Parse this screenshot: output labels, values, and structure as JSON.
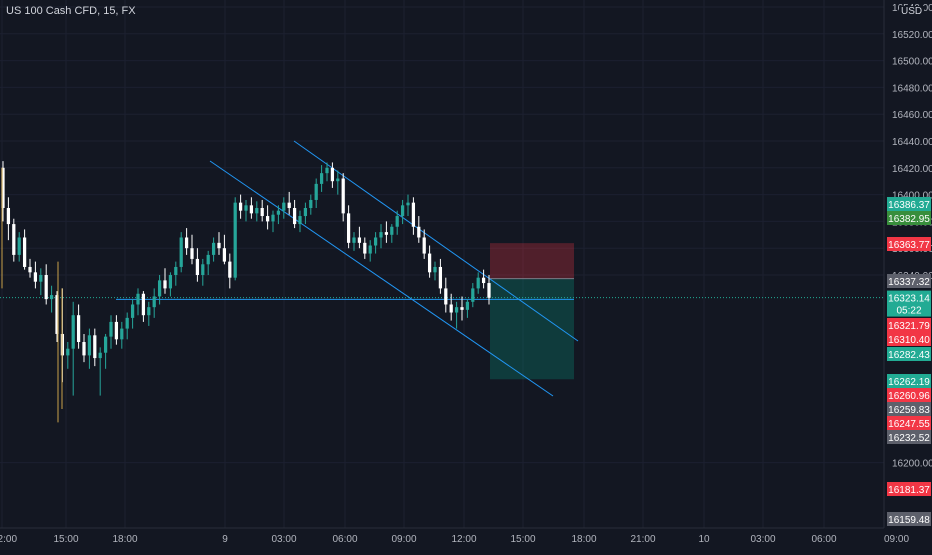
{
  "legend": {
    "title": "US 100 Cash CFD, 15, FX"
  },
  "axis": {
    "currency": "USD"
  },
  "chart_data": {
    "type": "candlestick",
    "symbol": "US 100 Cash CFD",
    "interval": "15",
    "exchange": "FX",
    "y_ticks": [
      16540,
      16520,
      16500,
      16480,
      16460,
      16440,
      16420,
      16400,
      16380,
      16360,
      16340,
      16200
    ],
    "ylim": [
      16155,
      16560
    ],
    "x_labels": [
      "12:00",
      "15:00",
      "18:00",
      "9",
      "03:00",
      "06:00",
      "09:00",
      "12:00",
      "15:00",
      "18:00",
      "21:00",
      "10",
      "03:00",
      "06:00",
      "09:00"
    ],
    "grid": true,
    "last_price": 16323.14,
    "countdown": "05:22",
    "price_labels": [
      {
        "value": "16386.37",
        "color": "#22ab94"
      },
      {
        "value": "16382.95",
        "color": "#388e3c"
      },
      {
        "value": "16363.77",
        "color": "#f23645"
      },
      {
        "value": "16337.32",
        "color": "#5d606b"
      },
      {
        "value": "16321.79",
        "color": "#f23645"
      },
      {
        "value": "16310.40",
        "color": "#f23645"
      },
      {
        "value": "16282.43",
        "color": "#22ab94"
      },
      {
        "value": "16262.19",
        "color": "#22ab94"
      },
      {
        "value": "16260.96",
        "color": "#f23645"
      },
      {
        "value": "16259.83",
        "color": "#5d606b"
      },
      {
        "value": "16247.55",
        "color": "#f23645"
      },
      {
        "value": "16232.52",
        "color": "#5d606b"
      },
      {
        "value": "16181.37",
        "color": "#f23645"
      },
      {
        "value": "16159.48",
        "color": "#5d606b"
      }
    ],
    "horizontal_line": 16321.79,
    "channel_lines": [
      {
        "name": "channel-upper",
        "from": [
          "08 03:00",
          16441
        ],
        "to": [
          "08 15:00",
          16312
        ]
      },
      {
        "name": "channel-lower",
        "from": [
          "08 21:00",
          16420
        ],
        "to": [
          "08 15:00",
          16253
        ]
      }
    ],
    "position": {
      "type": "short",
      "entry": 16337.32,
      "stop": 16363.77,
      "target": 16262.19
    },
    "candles_ohlc": [
      [
        16420,
        16425,
        16380,
        16390
      ],
      [
        16390,
        16398,
        16366,
        16378
      ],
      [
        16378,
        16382,
        16350,
        16355
      ],
      [
        16355,
        16372,
        16350,
        16368
      ],
      [
        16368,
        16374,
        16344,
        16346
      ],
      [
        16346,
        16352,
        16338,
        16342
      ],
      [
        16342,
        16350,
        16330,
        16335
      ],
      [
        16335,
        16345,
        16325,
        16340
      ],
      [
        16340,
        16348,
        16318,
        16322
      ],
      [
        16322,
        16332,
        16312,
        16325
      ],
      [
        16325,
        16328,
        16290,
        16296
      ],
      [
        16296,
        16330,
        16260,
        16280
      ],
      [
        16280,
        16290,
        16270,
        16285
      ],
      [
        16285,
        16320,
        16250,
        16310
      ],
      [
        16310,
        16318,
        16285,
        16290
      ],
      [
        16290,
        16296,
        16275,
        16280
      ],
      [
        16280,
        16300,
        16270,
        16295
      ],
      [
        16295,
        16300,
        16272,
        16278
      ],
      [
        16278,
        16286,
        16250,
        16282
      ],
      [
        16282,
        16296,
        16270,
        16294
      ],
      [
        16294,
        16310,
        16285,
        16305
      ],
      [
        16305,
        16310,
        16288,
        16292
      ],
      [
        16292,
        16305,
        16285,
        16300
      ],
      [
        16300,
        16312,
        16292,
        16308
      ],
      [
        16308,
        16322,
        16300,
        16318
      ],
      [
        16318,
        16330,
        16310,
        16326
      ],
      [
        16326,
        16328,
        16305,
        16310
      ],
      [
        16310,
        16320,
        16302,
        16316
      ],
      [
        16316,
        16330,
        16308,
        16324
      ],
      [
        16324,
        16340,
        16318,
        16336
      ],
      [
        16336,
        16345,
        16326,
        16330
      ],
      [
        16330,
        16342,
        16324,
        16340
      ],
      [
        16340,
        16350,
        16332,
        16346
      ],
      [
        16346,
        16372,
        16342,
        16368
      ],
      [
        16368,
        16375,
        16355,
        16360
      ],
      [
        16360,
        16370,
        16348,
        16352
      ],
      [
        16352,
        16360,
        16335,
        16340
      ],
      [
        16340,
        16352,
        16332,
        16348
      ],
      [
        16348,
        16358,
        16340,
        16355
      ],
      [
        16355,
        16368,
        16350,
        16364
      ],
      [
        16364,
        16372,
        16355,
        16360
      ],
      [
        16360,
        16370,
        16348,
        16350
      ],
      [
        16350,
        16356,
        16330,
        16338
      ],
      [
        16338,
        16398,
        16336,
        16394
      ],
      [
        16394,
        16400,
        16382,
        16388
      ],
      [
        16388,
        16396,
        16380,
        16392
      ],
      [
        16392,
        16398,
        16382,
        16386
      ],
      [
        16386,
        16395,
        16380,
        16390
      ],
      [
        16390,
        16396,
        16380,
        16384
      ],
      [
        16384,
        16392,
        16374,
        16380
      ],
      [
        16380,
        16388,
        16372,
        16385
      ],
      [
        16385,
        16392,
        16378,
        16388
      ],
      [
        16388,
        16398,
        16382,
        16394
      ],
      [
        16394,
        16402,
        16385,
        16390
      ],
      [
        16390,
        16396,
        16375,
        16378
      ],
      [
        16378,
        16388,
        16372,
        16384
      ],
      [
        16384,
        16394,
        16378,
        16390
      ],
      [
        16390,
        16400,
        16385,
        16396
      ],
      [
        16396,
        16412,
        16390,
        16408
      ],
      [
        16408,
        16422,
        16402,
        16416
      ],
      [
        16416,
        16424,
        16410,
        16420
      ],
      [
        16420,
        16424,
        16405,
        16410
      ],
      [
        16410,
        16418,
        16400,
        16412
      ],
      [
        16412,
        16416,
        16380,
        16386
      ],
      [
        16386,
        16392,
        16360,
        16364
      ],
      [
        16364,
        16372,
        16358,
        16368
      ],
      [
        16368,
        16376,
        16360,
        16364
      ],
      [
        16364,
        16368,
        16352,
        16356
      ],
      [
        16356,
        16366,
        16350,
        16362
      ],
      [
        16362,
        16372,
        16356,
        16368
      ],
      [
        16368,
        16378,
        16360,
        16372
      ],
      [
        16372,
        16380,
        16364,
        16370
      ],
      [
        16370,
        16378,
        16364,
        16376
      ],
      [
        16376,
        16388,
        16370,
        16384
      ],
      [
        16384,
        16396,
        16378,
        16392
      ],
      [
        16392,
        16400,
        16384,
        16394
      ],
      [
        16394,
        16398,
        16370,
        16376
      ],
      [
        16376,
        16384,
        16364,
        16368
      ],
      [
        16368,
        16374,
        16352,
        16356
      ],
      [
        16356,
        16362,
        16338,
        16342
      ],
      [
        16342,
        16350,
        16336,
        16346
      ],
      [
        16346,
        16352,
        16326,
        16330
      ],
      [
        16330,
        16338,
        16312,
        16318
      ],
      [
        16318,
        16326,
        16306,
        16312
      ],
      [
        16312,
        16320,
        16300,
        16316
      ],
      [
        16316,
        16324,
        16306,
        16314
      ],
      [
        16314,
        16322,
        16308,
        16320
      ],
      [
        16320,
        16334,
        16316,
        16330
      ],
      [
        16330,
        16342,
        16326,
        16338
      ],
      [
        16338,
        16344,
        16330,
        16334
      ],
      [
        16334,
        16340,
        16318,
        16323
      ]
    ]
  }
}
